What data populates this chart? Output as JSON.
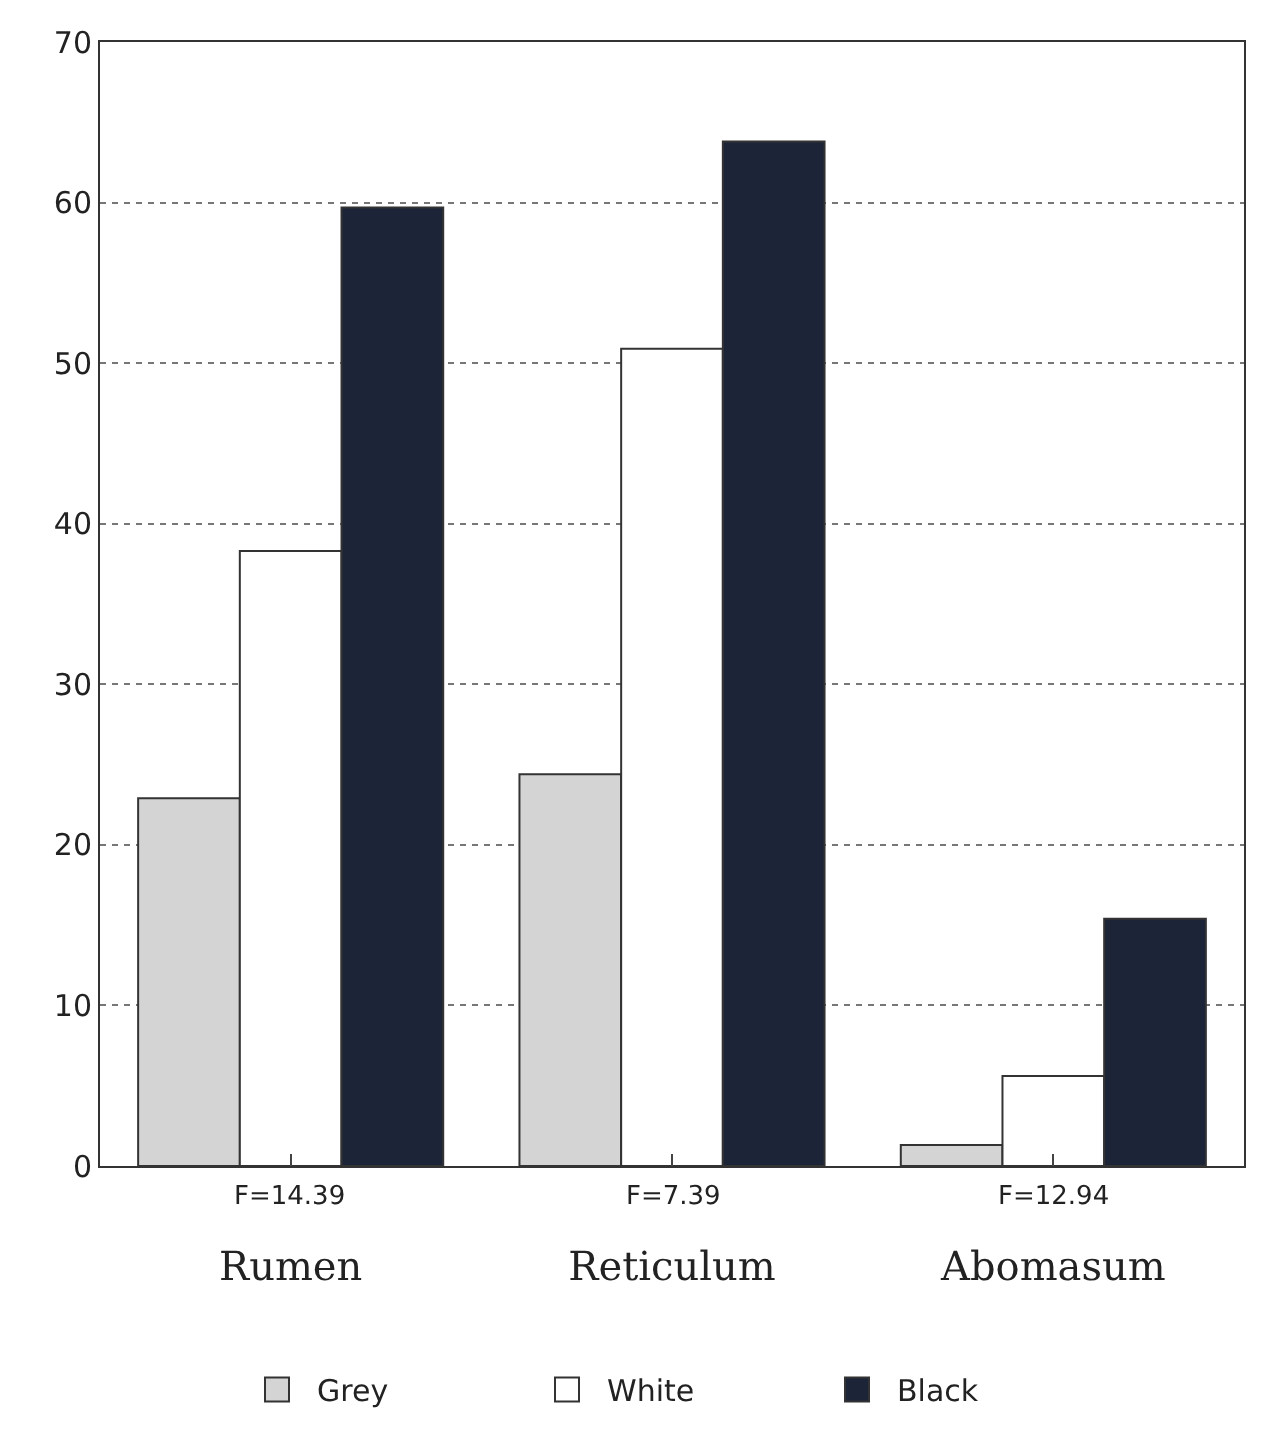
{
  "chart_data": {
    "type": "bar",
    "categories": [
      "Rumen",
      "Reticulum",
      "Abomasum"
    ],
    "series": [
      {
        "name": "Grey",
        "color": "#d4d4d4",
        "values": [
          22.9,
          24.4,
          1.3
        ]
      },
      {
        "name": "White",
        "color": "#ffffff",
        "values": [
          38.3,
          50.9,
          5.6
        ]
      },
      {
        "name": "Black",
        "color": "#1c2438",
        "values": [
          59.7,
          63.8,
          15.4
        ]
      }
    ],
    "annotations": [
      "F=14.39",
      "F=7.39",
      "F=12.94"
    ],
    "ylim": [
      0,
      70
    ],
    "yticks": [
      0,
      10,
      20,
      30,
      40,
      50,
      60,
      70
    ],
    "grid": "y",
    "legend": "bottom"
  }
}
